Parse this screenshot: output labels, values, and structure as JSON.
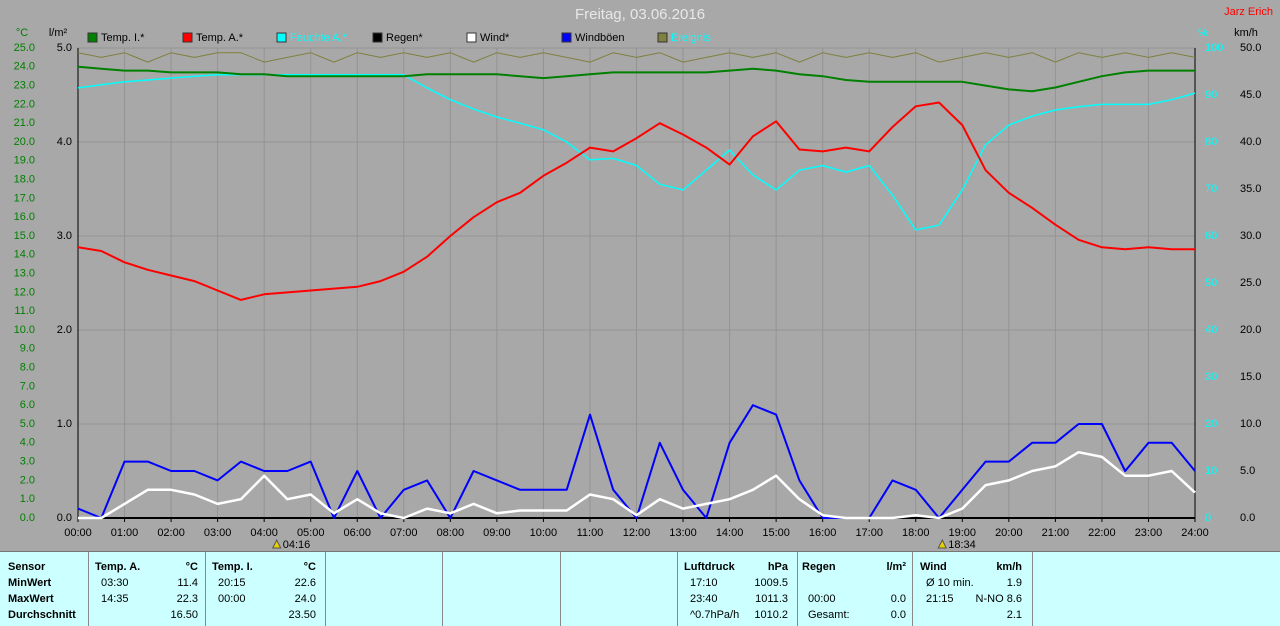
{
  "title": "Freitag, 03.06.2016",
  "author": "Jarz Erich",
  "chart_data": {
    "type": "line",
    "x": [
      0,
      0.5,
      1,
      1.5,
      2,
      2.5,
      3,
      3.5,
      4,
      4.5,
      5,
      5.5,
      6,
      6.5,
      7,
      7.5,
      8,
      8.5,
      9,
      9.5,
      10,
      10.5,
      11,
      11.5,
      12,
      12.5,
      13,
      13.5,
      14,
      14.5,
      15,
      15.5,
      16,
      16.5,
      17,
      17.5,
      18,
      18.5,
      19,
      19.5,
      20,
      20.5,
      21,
      21.5,
      22,
      22.5,
      23,
      23.5,
      24
    ],
    "xlim": [
      0,
      24
    ],
    "xticks": [
      {
        "value": 0,
        "label": "00:00"
      },
      {
        "value": 1,
        "label": "01:00"
      },
      {
        "value": 2,
        "label": "02:00"
      },
      {
        "value": 3,
        "label": "03:00"
      },
      {
        "value": 4,
        "label": "04:00"
      },
      {
        "value": 5,
        "label": "05:00"
      },
      {
        "value": 6,
        "label": "06:00"
      },
      {
        "value": 7,
        "label": "07:00"
      },
      {
        "value": 8,
        "label": "08:00"
      },
      {
        "value": 9,
        "label": "09:00"
      },
      {
        "value": 10,
        "label": "10:00"
      },
      {
        "value": 11,
        "label": "11:00"
      },
      {
        "value": 12,
        "label": "12:00"
      },
      {
        "value": 13,
        "label": "13:00"
      },
      {
        "value": 14,
        "label": "14:00"
      },
      {
        "value": 15,
        "label": "15:00"
      },
      {
        "value": 16,
        "label": "16:00"
      },
      {
        "value": 17,
        "label": "17:00"
      },
      {
        "value": 18,
        "label": "18:00"
      },
      {
        "value": 19,
        "label": "19:00"
      },
      {
        "value": 20,
        "label": "20:00"
      },
      {
        "value": 21,
        "label": "21:00"
      },
      {
        "value": 22,
        "label": "22:00"
      },
      {
        "value": 23,
        "label": "23:00"
      },
      {
        "value": 24,
        "label": "24:00"
      }
    ],
    "ylabel": "°C",
    "ylim": [
      0,
      25
    ],
    "yticks": [
      {
        "value": 0,
        "label": "0.0"
      },
      {
        "value": 1,
        "label": "1.0"
      },
      {
        "value": 2,
        "label": "2.0"
      },
      {
        "value": 3,
        "label": "3.0"
      },
      {
        "value": 4,
        "label": "4.0"
      },
      {
        "value": 5,
        "label": "5.0"
      },
      {
        "value": 6,
        "label": "6.0"
      },
      {
        "value": 7,
        "label": "7.0"
      },
      {
        "value": 8,
        "label": "8.0"
      },
      {
        "value": 9,
        "label": "9.0"
      },
      {
        "value": 10,
        "label": "10.0"
      },
      {
        "value": 11,
        "label": "11.0"
      },
      {
        "value": 12,
        "label": "12.0"
      },
      {
        "value": 13,
        "label": "13.0"
      },
      {
        "value": 14,
        "label": "14.0"
      },
      {
        "value": 15,
        "label": "15.0"
      },
      {
        "value": 16,
        "label": "16.0"
      },
      {
        "value": 17,
        "label": "17.0"
      },
      {
        "value": 18,
        "label": "18.0"
      },
      {
        "value": 19,
        "label": "19.0"
      },
      {
        "value": 20,
        "label": "20.0"
      },
      {
        "value": 21,
        "label": "21.0"
      },
      {
        "value": 22,
        "label": "22.0"
      },
      {
        "value": 23,
        "label": "23.0"
      },
      {
        "value": 24,
        "label": "24.0"
      },
      {
        "value": 25,
        "label": "25.0"
      }
    ],
    "y3label": "l/m²",
    "y3lim": [
      0,
      5
    ],
    "y3ticks": [
      {
        "value": 0,
        "label": "0.0"
      },
      {
        "value": 1,
        "label": "1.0"
      },
      {
        "value": 2,
        "label": "2.0"
      },
      {
        "value": 3,
        "label": "3.0"
      },
      {
        "value": 4,
        "label": "4.0"
      },
      {
        "value": 5,
        "label": "5.0"
      }
    ],
    "y4label": "%",
    "y4lim": [
      0,
      100
    ],
    "y4ticks": [
      0,
      10,
      20,
      30,
      40,
      50,
      60,
      70,
      80,
      90,
      100
    ],
    "y2label": "km/h",
    "y2lim": [
      0,
      50
    ],
    "y2ticks": [
      {
        "value": 0,
        "label": "0.0"
      },
      {
        "value": 5,
        "label": "5.0"
      },
      {
        "value": 10,
        "label": "10.0"
      },
      {
        "value": 15,
        "label": "15.0"
      },
      {
        "value": 20,
        "label": "20.0"
      },
      {
        "value": 25,
        "label": "25.0"
      },
      {
        "value": 30,
        "label": "30.0"
      },
      {
        "value": 35,
        "label": "35.0"
      },
      {
        "value": 40,
        "label": "40.0"
      },
      {
        "value": 45,
        "label": "45.0"
      },
      {
        "value": 50,
        "label": "50.0"
      }
    ],
    "grid": true,
    "series": [
      {
        "name": "Temp. I.*",
        "color": "#008000",
        "axis": "y",
        "values": [
          24.0,
          23.9,
          23.8,
          23.8,
          23.7,
          23.7,
          23.7,
          23.6,
          23.6,
          23.5,
          23.5,
          23.5,
          23.5,
          23.5,
          23.5,
          23.6,
          23.6,
          23.6,
          23.6,
          23.5,
          23.4,
          23.5,
          23.6,
          23.7,
          23.7,
          23.7,
          23.7,
          23.7,
          23.8,
          23.9,
          23.8,
          23.6,
          23.5,
          23.3,
          23.2,
          23.2,
          23.2,
          23.2,
          23.2,
          23.0,
          22.8,
          22.7,
          22.9,
          23.2,
          23.5,
          23.7,
          23.8,
          23.8,
          23.8
        ]
      },
      {
        "name": "Temp. A.*",
        "color": "#ff0000",
        "axis": "y",
        "values": [
          14.4,
          14.2,
          13.6,
          13.2,
          12.9,
          12.6,
          12.1,
          11.6,
          11.9,
          12.0,
          12.1,
          12.2,
          12.3,
          12.6,
          13.1,
          13.9,
          15.0,
          16.0,
          16.8,
          17.3,
          18.2,
          18.9,
          19.7,
          19.5,
          20.2,
          21.0,
          20.4,
          19.7,
          18.8,
          20.3,
          21.1,
          19.6,
          19.5,
          19.7,
          19.5,
          20.8,
          21.9,
          22.1,
          20.9,
          18.5,
          17.3,
          16.5,
          15.6,
          14.8,
          14.4,
          14.3,
          14.4,
          14.3,
          14.3
        ]
      },
      {
        "name": "Feuchte A.*",
        "color": "#00ffff",
        "axis": "y4",
        "values": [
          91.5,
          92.2,
          92.8,
          93.2,
          93.6,
          94.0,
          94.3,
          94.3,
          94.3,
          94.3,
          94.3,
          94.3,
          94.3,
          94.3,
          94.3,
          91.5,
          89,
          87,
          85.3,
          84,
          82.6,
          80,
          76.2,
          76.5,
          75,
          71,
          69.8,
          74,
          78.3,
          73,
          69.8,
          74,
          75,
          73.6,
          75,
          68.7,
          61.3,
          62.3,
          69.8,
          79.4,
          83.6,
          85.5,
          86.8,
          87.5,
          88,
          88,
          88,
          89,
          90.4
        ]
      },
      {
        "name": "Regen*",
        "color": "#000000",
        "axis": "y3",
        "values": [
          0,
          0,
          0,
          0,
          0,
          0,
          0,
          0,
          0,
          0,
          0,
          0,
          0,
          0,
          0,
          0,
          0,
          0,
          0,
          0,
          0,
          0,
          0,
          0,
          0,
          0,
          0,
          0,
          0,
          0,
          0,
          0,
          0,
          0,
          0,
          0,
          0,
          0,
          0,
          0,
          0,
          0,
          0,
          0,
          0,
          0,
          0,
          0,
          0
        ]
      },
      {
        "name": "Wind*",
        "color": "#ffffff",
        "axis": "y2",
        "values": [
          0,
          0,
          1.5,
          3,
          3,
          2.5,
          1.5,
          2,
          4.5,
          2,
          2.5,
          0.5,
          2,
          0.5,
          0,
          1,
          0.5,
          1.5,
          0.5,
          0.8,
          0.8,
          0.8,
          2.5,
          2,
          0.3,
          2,
          1,
          1.5,
          2,
          3,
          4.5,
          2,
          0.3,
          0,
          0,
          0,
          0.3,
          0,
          1,
          3.5,
          4,
          5,
          5.5,
          7,
          6.5,
          4.5,
          4.5,
          5,
          2.7
        ]
      },
      {
        "name": "Windböen",
        "color": "#0000ff",
        "axis": "y2",
        "values": [
          1,
          0,
          6,
          6,
          5,
          5,
          4,
          6,
          5,
          5,
          6,
          0,
          5,
          0,
          3,
          4,
          0,
          5,
          4,
          3,
          3,
          3,
          11,
          3,
          0,
          8,
          3,
          0,
          8,
          12,
          11,
          4,
          0,
          0,
          0,
          4,
          3,
          0,
          3,
          6,
          6,
          8,
          8,
          10,
          10,
          5,
          8,
          8,
          5
        ]
      },
      {
        "name": "Ereignis",
        "color": "#808040",
        "axis": "y4",
        "values": [
          99,
          98,
          99,
          97,
          99,
          98,
          99,
          99,
          97,
          98,
          99,
          97,
          99,
          98,
          99,
          98,
          99,
          97,
          99,
          98,
          99,
          98,
          97,
          99,
          98,
          99,
          97,
          98,
          99,
          98,
          99,
          97,
          99,
          98,
          99,
          98,
          99,
          97,
          98,
          99,
          98,
          99,
          97,
          99,
          98,
          99,
          98,
          99,
          98
        ]
      }
    ],
    "annotations": [
      {
        "x": 4.27,
        "label": "04:16"
      },
      {
        "x": 18.57,
        "label": "18:34"
      }
    ]
  },
  "stats": {
    "row_labels": [
      "Sensor",
      "MinWert",
      "MaxWert",
      "Durchschnitt"
    ],
    "groups": [
      {
        "header": [
          "Temp. A.",
          "°C"
        ],
        "rows": [
          [
            "03:30",
            "11.4"
          ],
          [
            "14:35",
            "22.3"
          ],
          [
            null,
            "16.50"
          ]
        ]
      },
      {
        "header": [
          "Temp. I.",
          "°C"
        ],
        "rows": [
          [
            "20:15",
            "22.6"
          ],
          [
            "00:00",
            "24.0"
          ],
          [
            null,
            "23.50"
          ]
        ]
      },
      {
        "header": [
          "Luftdruck",
          "hPa"
        ],
        "rows": [
          [
            "17:10",
            "1009.5"
          ],
          [
            "23:40",
            "1011.3"
          ],
          [
            "^0.7hPa/h",
            "1010.2"
          ]
        ]
      },
      {
        "header": [
          "Regen",
          "l/m²"
        ],
        "rows": [
          [
            null,
            null
          ],
          [
            "00:00",
            "0.0"
          ],
          [
            "Gesamt:",
            "0.0"
          ]
        ]
      },
      {
        "header": [
          "Wind",
          "km/h"
        ],
        "rows": [
          [
            "Ø 10 min.",
            "1.9"
          ],
          [
            "21:15",
            "N-NO 8.6"
          ],
          [
            null,
            "2.1"
          ]
        ]
      }
    ]
  }
}
